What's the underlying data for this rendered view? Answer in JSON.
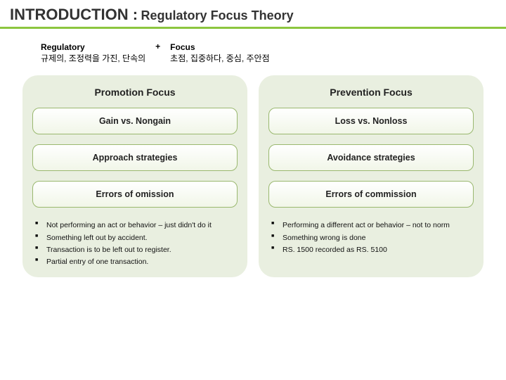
{
  "title": {
    "main": "INTRODUCTION :",
    "sub": "Regulatory Focus Theory"
  },
  "defs": {
    "left": {
      "term": "Regulatory",
      "gloss": "규제의, 조정력을 가진, 단속의"
    },
    "plus": "+",
    "right": {
      "term": "Focus",
      "gloss": "초점, 집중하다, 중심, 주안점"
    }
  },
  "panels": {
    "left": {
      "head": "Promotion Focus",
      "pills": [
        "Gain vs. Nongain",
        "Approach strategies",
        "Errors of omission"
      ],
      "bullets": [
        "Not performing an act or behavior – just didn't do it",
        "Something left out by accident.",
        "Transaction is to be left out to register.",
        "Partial entry of one transaction."
      ]
    },
    "right": {
      "head": "Prevention Focus",
      "pills": [
        "Loss vs. Nonloss",
        "Avoidance strategies",
        "Errors of commission"
      ],
      "bullets": [
        "Performing a different act or behavior – not to norm",
        "Something wrong is done",
        "RS. 1500 recorded as RS. 5100"
      ]
    }
  },
  "colors": {
    "accent": "#8cc63f",
    "panel_bg": "#e9efe0",
    "pill_border": "#9ab86f"
  }
}
